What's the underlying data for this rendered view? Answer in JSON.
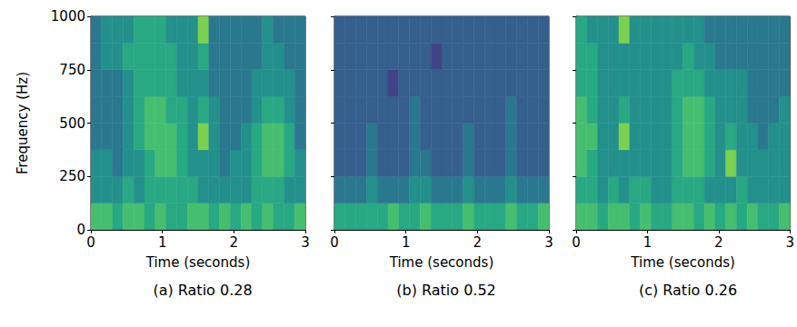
{
  "chart_data": [
    {
      "type": "heatmap",
      "caption": "(a) Ratio 0.28",
      "xlabel": "Time (seconds)",
      "ylabel": "Frequency (Hz)",
      "xlim": [
        0,
        3
      ],
      "xticks": [
        0,
        1,
        2,
        3
      ],
      "ylim": [
        0,
        1000
      ],
      "yticks": [
        0,
        250,
        500,
        750,
        1000
      ],
      "x_bins": [
        0,
        0.15,
        0.3,
        0.45,
        0.6,
        0.75,
        0.9,
        1.05,
        1.2,
        1.35,
        1.5,
        1.65,
        1.8,
        1.95,
        2.1,
        2.25,
        2.4,
        2.55,
        2.7,
        2.85,
        3
      ],
      "y_bins": [
        0,
        125,
        250,
        375,
        500,
        625,
        750,
        875,
        1000
      ],
      "color_range": [
        0,
        10
      ],
      "cells": [
        [
          7,
          7,
          6,
          7,
          7,
          6,
          7,
          6,
          6,
          7,
          7,
          6,
          7,
          6,
          7,
          6,
          7,
          6,
          6,
          7
        ],
        [
          5,
          5,
          5,
          6,
          5,
          6,
          6,
          6,
          6,
          6,
          5,
          5,
          5,
          5,
          5,
          6,
          6,
          6,
          5,
          5
        ],
        [
          5,
          5,
          4,
          5,
          5,
          6,
          7,
          7,
          6,
          5,
          5,
          5,
          4,
          5,
          5,
          6,
          7,
          7,
          6,
          5
        ],
        [
          4,
          4,
          4,
          5,
          6,
          7,
          7,
          7,
          6,
          5,
          8,
          5,
          4,
          4,
          5,
          6,
          7,
          7,
          6,
          4
        ],
        [
          4,
          4,
          4,
          5,
          6,
          7,
          7,
          6,
          6,
          5,
          6,
          5,
          4,
          4,
          4,
          5,
          6,
          6,
          5,
          4
        ],
        [
          4,
          4,
          4,
          5,
          6,
          6,
          6,
          6,
          5,
          5,
          5,
          4,
          4,
          4,
          4,
          5,
          5,
          5,
          5,
          4
        ],
        [
          4,
          5,
          5,
          6,
          6,
          6,
          6,
          6,
          5,
          5,
          6,
          4,
          4,
          4,
          4,
          4,
          5,
          5,
          4,
          4
        ],
        [
          4,
          5,
          5,
          5,
          6,
          6,
          6,
          5,
          5,
          5,
          8,
          4,
          4,
          4,
          4,
          4,
          5,
          4,
          4,
          4
        ]
      ]
    },
    {
      "type": "heatmap",
      "caption": "(b) Ratio 0.52",
      "xlabel": "Time (seconds)",
      "xlim": [
        0,
        3
      ],
      "xticks": [
        0,
        1,
        2,
        3
      ],
      "ylim": [
        0,
        1000
      ],
      "yticks": [
        0,
        250,
        500,
        750,
        1000
      ],
      "tick_labels": "x",
      "x_bins": [
        0,
        0.15,
        0.3,
        0.45,
        0.6,
        0.75,
        0.9,
        1.05,
        1.2,
        1.35,
        1.5,
        1.65,
        1.8,
        1.95,
        2.1,
        2.25,
        2.4,
        2.55,
        2.7,
        2.85,
        3
      ],
      "y_bins": [
        0,
        125,
        250,
        375,
        500,
        625,
        750,
        875,
        1000
      ],
      "color_range": [
        0,
        10
      ],
      "cells": [
        [
          6,
          6,
          6,
          6,
          6,
          7,
          6,
          6,
          7,
          6,
          6,
          6,
          7,
          6,
          6,
          6,
          7,
          6,
          6,
          7
        ],
        [
          4,
          4,
          4,
          5,
          4,
          4,
          4,
          5,
          5,
          4,
          4,
          4,
          5,
          4,
          4,
          4,
          5,
          4,
          4,
          4
        ],
        [
          3,
          3,
          3,
          4,
          3,
          3,
          3,
          4,
          4,
          3,
          3,
          3,
          4,
          3,
          3,
          3,
          4,
          3,
          3,
          3
        ],
        [
          3,
          3,
          3,
          4,
          3,
          3,
          3,
          4,
          3,
          3,
          3,
          3,
          4,
          3,
          3,
          3,
          4,
          3,
          3,
          3
        ],
        [
          3,
          3,
          3,
          3,
          3,
          3,
          3,
          4,
          3,
          3,
          3,
          3,
          3,
          3,
          3,
          3,
          4,
          3,
          3,
          3
        ],
        [
          3,
          3,
          3,
          3,
          3,
          2,
          3,
          3,
          3,
          3,
          3,
          3,
          3,
          3,
          3,
          3,
          3,
          3,
          3,
          3
        ],
        [
          3,
          3,
          3,
          3,
          3,
          3,
          3,
          3,
          3,
          2,
          3,
          3,
          3,
          3,
          3,
          3,
          3,
          3,
          3,
          3
        ],
        [
          3,
          3,
          3,
          3,
          3,
          3,
          3,
          3,
          3,
          3,
          3,
          3,
          3,
          3,
          3,
          3,
          3,
          3,
          3,
          3
        ]
      ]
    },
    {
      "type": "heatmap",
      "caption": "(c) Ratio 0.26",
      "xlabel": "Time (seconds)",
      "xlim": [
        0,
        3
      ],
      "xticks": [
        0,
        1,
        2,
        3
      ],
      "ylim": [
        0,
        1000
      ],
      "yticks": [
        0,
        250,
        500,
        750,
        1000
      ],
      "tick_labels": "x",
      "x_bins": [
        0,
        0.15,
        0.3,
        0.45,
        0.6,
        0.75,
        0.9,
        1.05,
        1.2,
        1.35,
        1.5,
        1.65,
        1.8,
        1.95,
        2.1,
        2.25,
        2.4,
        2.55,
        2.7,
        2.85,
        3
      ],
      "y_bins": [
        0,
        125,
        250,
        375,
        500,
        625,
        750,
        875,
        1000
      ],
      "color_range": [
        0,
        10
      ],
      "cells": [
        [
          7,
          7,
          6,
          7,
          7,
          6,
          7,
          6,
          6,
          7,
          7,
          6,
          7,
          6,
          7,
          6,
          7,
          6,
          6,
          7
        ],
        [
          6,
          6,
          5,
          6,
          5,
          6,
          6,
          5,
          5,
          6,
          6,
          6,
          5,
          5,
          5,
          6,
          5,
          5,
          5,
          5
        ],
        [
          7,
          6,
          5,
          5,
          5,
          5,
          5,
          5,
          5,
          6,
          7,
          7,
          6,
          5,
          8,
          5,
          5,
          5,
          5,
          5
        ],
        [
          7,
          7,
          5,
          5,
          8,
          5,
          5,
          5,
          5,
          6,
          7,
          7,
          6,
          5,
          6,
          5,
          5,
          4,
          5,
          5
        ],
        [
          7,
          6,
          5,
          5,
          6,
          5,
          5,
          5,
          5,
          6,
          7,
          7,
          6,
          5,
          5,
          5,
          4,
          4,
          4,
          5
        ],
        [
          6,
          6,
          5,
          5,
          5,
          5,
          5,
          5,
          5,
          6,
          6,
          6,
          5,
          5,
          5,
          5,
          4,
          4,
          4,
          4
        ],
        [
          6,
          6,
          5,
          5,
          5,
          5,
          5,
          5,
          5,
          5,
          6,
          5,
          5,
          4,
          4,
          4,
          4,
          4,
          4,
          4
        ],
        [
          6,
          5,
          5,
          5,
          8,
          5,
          5,
          5,
          5,
          5,
          5,
          5,
          4,
          4,
          4,
          4,
          4,
          4,
          4,
          4
        ]
      ]
    }
  ]
}
